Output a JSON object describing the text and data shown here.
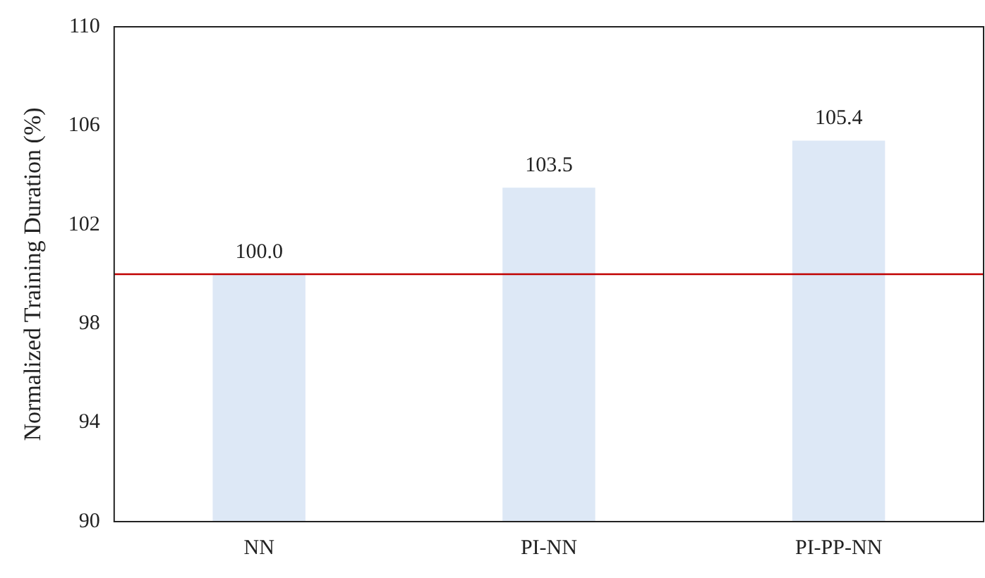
{
  "chart_data": {
    "type": "bar",
    "ylabel": "Normalized Training Duration (%)",
    "categories": [
      "NN",
      "PI-NN",
      "PI-PP-NN"
    ],
    "values": [
      100.0,
      103.5,
      105.4
    ],
    "value_labels": [
      "100.0",
      "103.5",
      "105.4"
    ],
    "color": "#dde8f6",
    "ylim": [
      90,
      110
    ],
    "yticks": [
      90,
      94,
      98,
      102,
      106,
      110
    ],
    "grid": false,
    "legend": false,
    "ref_lines": [
      {
        "axis": "y",
        "value": 100,
        "color": "#c00000"
      }
    ]
  }
}
